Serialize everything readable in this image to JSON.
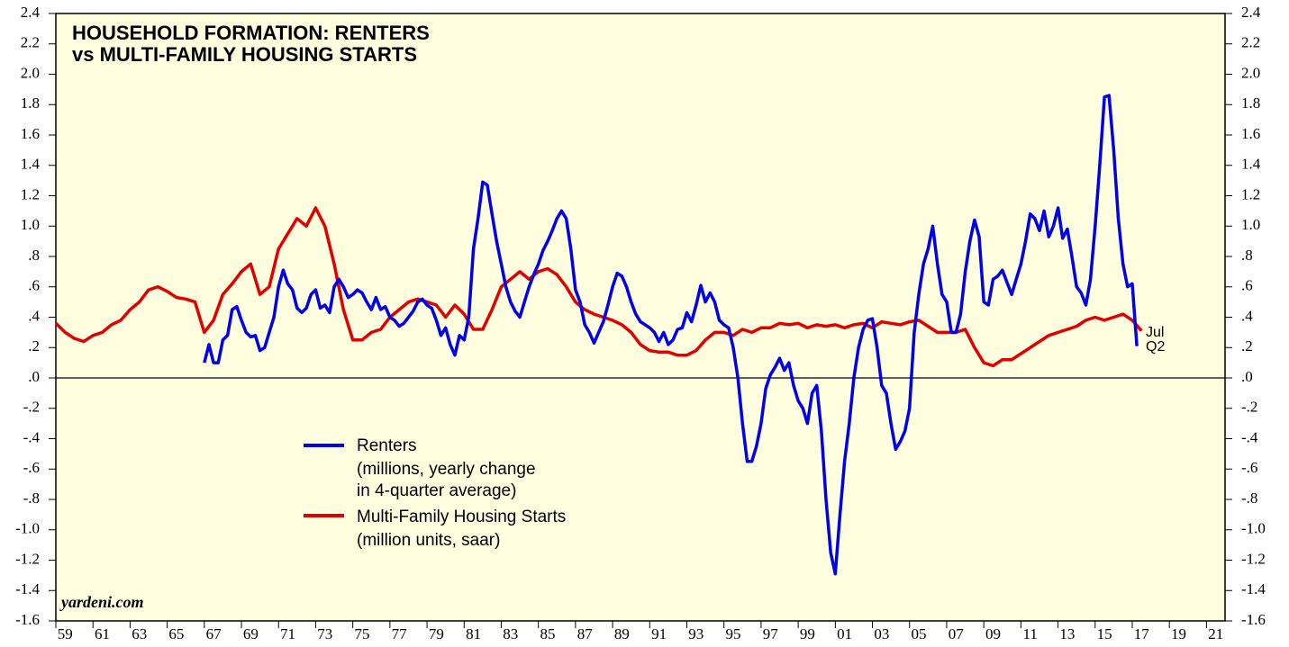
{
  "chart_data": {
    "type": "line",
    "title_lines": [
      "HOUSEHOLD FORMATION: RENTERS",
      "vs MULTI-FAMILY HOUSING STARTS"
    ],
    "source": "yardeni.com",
    "legend_notes": [
      [
        "(millions, yearly change",
        "in 4-quarter average)"
      ],
      [
        "(million units, saar)"
      ]
    ],
    "annotations": [
      {
        "text": "Jul",
        "color": "#e00000"
      },
      {
        "text": "Q2",
        "color": "#0000ee"
      }
    ],
    "xlim": [
      1959,
      2022
    ],
    "xticks": [
      {
        "value": 1959,
        "label": "59"
      },
      {
        "value": 1961,
        "label": "61"
      },
      {
        "value": 1963,
        "label": "63"
      },
      {
        "value": 1965,
        "label": "65"
      },
      {
        "value": 1967,
        "label": "67"
      },
      {
        "value": 1969,
        "label": "69"
      },
      {
        "value": 1971,
        "label": "71"
      },
      {
        "value": 1973,
        "label": "73"
      },
      {
        "value": 1975,
        "label": "75"
      },
      {
        "value": 1977,
        "label": "77"
      },
      {
        "value": 1979,
        "label": "79"
      },
      {
        "value": 1981,
        "label": "81"
      },
      {
        "value": 1983,
        "label": "83"
      },
      {
        "value": 1985,
        "label": "85"
      },
      {
        "value": 1987,
        "label": "87"
      },
      {
        "value": 1989,
        "label": "89"
      },
      {
        "value": 1991,
        "label": "91"
      },
      {
        "value": 1993,
        "label": "93"
      },
      {
        "value": 1995,
        "label": "95"
      },
      {
        "value": 1997,
        "label": "97"
      },
      {
        "value": 1999,
        "label": "99"
      },
      {
        "value": 2001,
        "label": "01"
      },
      {
        "value": 2003,
        "label": "03"
      },
      {
        "value": 2005,
        "label": "05"
      },
      {
        "value": 2007,
        "label": "07"
      },
      {
        "value": 2009,
        "label": "09"
      },
      {
        "value": 2011,
        "label": "11"
      },
      {
        "value": 2013,
        "label": "13"
      },
      {
        "value": 2015,
        "label": "15"
      },
      {
        "value": 2017,
        "label": "17"
      },
      {
        "value": 2019,
        "label": "19"
      },
      {
        "value": 2021,
        "label": "21"
      }
    ],
    "ylim": [
      -1.6,
      2.4
    ],
    "yticks": [
      2.4,
      2.2,
      {
        "value": 2,
        "label": "2.0"
      },
      1.8,
      1.6,
      1.4,
      1.2,
      {
        "value": 1,
        "label": "1.0"
      },
      {
        "value": 0.8,
        "label": ".8"
      },
      {
        "value": 0.6,
        "label": ".6"
      },
      {
        "value": 0.4,
        "label": ".4"
      },
      {
        "value": 0.2,
        "label": ".2"
      },
      {
        "value": 0,
        "label": ".0"
      },
      {
        "value": -0.2,
        "label": "-.2"
      },
      {
        "value": -0.4,
        "label": "-.4"
      },
      {
        "value": -0.6,
        "label": "-.6"
      },
      {
        "value": -0.8,
        "label": "-.8"
      },
      {
        "value": -1,
        "label": "-1.0"
      },
      -1.2,
      -1.4,
      -1.6
    ],
    "series": [
      {
        "name": "Renters",
        "color": "#0000ee",
        "x": [
          1967,
          1967.25,
          1967.5,
          1967.75,
          1968,
          1968.25,
          1968.5,
          1968.75,
          1969,
          1969.25,
          1969.5,
          1969.75,
          1970,
          1970.25,
          1970.5,
          1970.75,
          1971,
          1971.25,
          1971.5,
          1971.75,
          1972,
          1972.25,
          1972.5,
          1972.75,
          1973,
          1973.25,
          1973.5,
          1973.75,
          1974,
          1974.25,
          1974.5,
          1974.75,
          1975,
          1975.25,
          1975.5,
          1975.75,
          1976,
          1976.25,
          1976.5,
          1976.75,
          1977,
          1977.25,
          1977.5,
          1977.75,
          1978,
          1978.25,
          1978.5,
          1978.75,
          1979,
          1979.25,
          1979.5,
          1979.75,
          1980,
          1980.25,
          1980.5,
          1980.75,
          1981,
          1981.25,
          1981.5,
          1981.75,
          1982,
          1982.25,
          1982.5,
          1982.75,
          1983,
          1983.25,
          1983.5,
          1983.75,
          1984,
          1984.25,
          1984.5,
          1984.75,
          1985,
          1985.25,
          1985.5,
          1985.75,
          1986,
          1986.25,
          1986.5,
          1986.75,
          1987,
          1987.25,
          1987.5,
          1987.75,
          1988,
          1988.25,
          1988.5,
          1988.75,
          1989,
          1989.25,
          1989.5,
          1989.75,
          1990,
          1990.25,
          1990.5,
          1990.75,
          1991,
          1991.25,
          1991.5,
          1991.75,
          1992,
          1992.25,
          1992.5,
          1992.75,
          1993,
          1993.25,
          1993.5,
          1993.75,
          1994,
          1994.25,
          1994.5,
          1994.75,
          1995,
          1995.25,
          1995.5,
          1995.75,
          1996,
          1996.25,
          1996.5,
          1996.75,
          1997,
          1997.25,
          1997.5,
          1997.75,
          1998,
          1998.25,
          1998.5,
          1998.75,
          1999,
          1999.25,
          1999.5,
          1999.75,
          2000,
          2000.25,
          2000.5,
          2000.75,
          2001,
          2001.25,
          2001.5,
          2001.75,
          2002,
          2002.25,
          2002.5,
          2002.75,
          2003,
          2003.25,
          2003.5,
          2003.75,
          2004,
          2004.25,
          2004.5,
          2004.75,
          2005,
          2005.25,
          2005.5,
          2005.75,
          2006,
          2006.25,
          2006.5,
          2006.75,
          2007,
          2007.25,
          2007.5,
          2007.75,
          2008,
          2008.25,
          2008.5,
          2008.75,
          2009,
          2009.25,
          2009.5,
          2009.75,
          2010,
          2010.25,
          2010.5,
          2010.75,
          2011,
          2011.25,
          2011.5,
          2011.75,
          2012,
          2012.25,
          2012.5,
          2012.75,
          2013,
          2013.25,
          2013.5,
          2013.75,
          2014,
          2014.25,
          2014.5,
          2014.75,
          2015,
          2015.25,
          2015.5,
          2015.75,
          2016,
          2016.25,
          2016.5,
          2016.75,
          2017,
          2017.25
        ],
        "values": [
          0.1,
          0.22,
          0.1,
          0.1,
          0.25,
          0.28,
          0.45,
          0.47,
          0.38,
          0.3,
          0.27,
          0.28,
          0.18,
          0.2,
          0.3,
          0.4,
          0.6,
          0.71,
          0.62,
          0.58,
          0.46,
          0.43,
          0.46,
          0.55,
          0.58,
          0.46,
          0.48,
          0.43,
          0.6,
          0.65,
          0.6,
          0.53,
          0.55,
          0.58,
          0.56,
          0.5,
          0.45,
          0.53,
          0.45,
          0.47,
          0.4,
          0.38,
          0.34,
          0.36,
          0.4,
          0.44,
          0.5,
          0.52,
          0.48,
          0.46,
          0.38,
          0.28,
          0.33,
          0.22,
          0.15,
          0.28,
          0.25,
          0.4,
          0.85,
          1.05,
          1.29,
          1.27,
          1.08,
          0.9,
          0.75,
          0.6,
          0.5,
          0.44,
          0.4,
          0.5,
          0.6,
          0.68,
          0.75,
          0.84,
          0.9,
          0.97,
          1.05,
          1.1,
          1.05,
          0.85,
          0.58,
          0.5,
          0.35,
          0.3,
          0.23,
          0.3,
          0.37,
          0.48,
          0.6,
          0.69,
          0.67,
          0.6,
          0.5,
          0.42,
          0.37,
          0.35,
          0.33,
          0.3,
          0.24,
          0.3,
          0.22,
          0.25,
          0.32,
          0.33,
          0.43,
          0.37,
          0.48,
          0.61,
          0.5,
          0.56,
          0.5,
          0.38,
          0.35,
          0.33,
          0.2,
          0,
          -0.3,
          -0.55,
          -0.55,
          -0.45,
          -0.3,
          -0.07,
          0.02,
          0.07,
          0.13,
          0.05,
          0.1,
          -0.05,
          -0.15,
          -0.2,
          -0.3,
          -0.1,
          -0.05,
          -0.35,
          -0.8,
          -1.15,
          -1.29,
          -0.9,
          -0.55,
          -0.3,
          0,
          0.2,
          0.32,
          0.38,
          0.39,
          0.2,
          -0.05,
          -0.1,
          -0.3,
          -0.47,
          -0.42,
          -0.35,
          -0.2,
          0.3,
          0.55,
          0.75,
          0.85,
          1,
          0.75,
          0.55,
          0.5,
          0.3,
          0.3,
          0.42,
          0.7,
          0.9,
          1.04,
          0.93,
          0.5,
          0.48,
          0.65,
          0.67,
          0.71,
          0.63,
          0.55,
          0.65,
          0.75,
          0.9,
          1.08,
          1.05,
          0.97,
          1.1,
          0.93,
          1,
          1.12,
          0.92,
          0.98,
          0.8,
          0.6,
          0.56,
          0.48,
          0.65,
          1,
          1.4,
          1.85,
          1.86,
          1.5,
          1.05,
          0.75,
          0.6,
          0.62,
          0.21
        ]
      },
      {
        "name": "Multi-Family Housing Starts",
        "color": "#e00000",
        "x": [
          1959,
          1959.5,
          1960,
          1960.5,
          1961,
          1961.5,
          1962,
          1962.5,
          1963,
          1963.5,
          1964,
          1964.5,
          1965,
          1965.5,
          1966,
          1966.5,
          1967,
          1967.5,
          1968,
          1968.5,
          1969,
          1969.5,
          1970,
          1970.5,
          1971,
          1971.5,
          1972,
          1972.5,
          1973,
          1973.5,
          1974,
          1974.5,
          1975,
          1975.5,
          1976,
          1976.5,
          1977,
          1977.5,
          1978,
          1978.5,
          1979,
          1979.5,
          1980,
          1980.5,
          1981,
          1981.5,
          1982,
          1982.5,
          1983,
          1983.5,
          1984,
          1984.5,
          1985,
          1985.5,
          1986,
          1986.5,
          1987,
          1987.5,
          1988,
          1988.5,
          1989,
          1989.5,
          1990,
          1990.5,
          1991,
          1991.5,
          1992,
          1992.5,
          1993,
          1993.5,
          1994,
          1994.5,
          1995,
          1995.5,
          1996,
          1996.5,
          1997,
          1997.5,
          1998,
          1998.5,
          1999,
          1999.5,
          2000,
          2000.5,
          2001,
          2001.5,
          2002,
          2002.5,
          2003,
          2003.5,
          2004,
          2004.5,
          2005,
          2005.5,
          2006,
          2006.5,
          2007,
          2007.5,
          2008,
          2008.5,
          2009,
          2009.5,
          2010,
          2010.5,
          2011,
          2011.5,
          2012,
          2012.5,
          2013,
          2013.5,
          2014,
          2014.5,
          2015,
          2015.5,
          2016,
          2016.5,
          2017,
          2017.5
        ],
        "values": [
          0.36,
          0.3,
          0.26,
          0.24,
          0.28,
          0.3,
          0.35,
          0.38,
          0.45,
          0.5,
          0.58,
          0.6,
          0.57,
          0.53,
          0.52,
          0.5,
          0.3,
          0.38,
          0.55,
          0.62,
          0.7,
          0.75,
          0.55,
          0.6,
          0.85,
          0.95,
          1.05,
          1,
          1.12,
          1,
          0.75,
          0.45,
          0.25,
          0.25,
          0.3,
          0.32,
          0.4,
          0.45,
          0.5,
          0.52,
          0.5,
          0.48,
          0.4,
          0.48,
          0.42,
          0.32,
          0.32,
          0.45,
          0.6,
          0.65,
          0.7,
          0.65,
          0.7,
          0.72,
          0.68,
          0.6,
          0.5,
          0.45,
          0.42,
          0.4,
          0.38,
          0.35,
          0.3,
          0.22,
          0.18,
          0.17,
          0.17,
          0.15,
          0.15,
          0.18,
          0.25,
          0.3,
          0.3,
          0.28,
          0.32,
          0.3,
          0.33,
          0.33,
          0.36,
          0.35,
          0.36,
          0.33,
          0.35,
          0.34,
          0.35,
          0.33,
          0.35,
          0.36,
          0.33,
          0.37,
          0.36,
          0.35,
          0.37,
          0.38,
          0.34,
          0.3,
          0.3,
          0.3,
          0.32,
          0.2,
          0.1,
          0.08,
          0.12,
          0.12,
          0.16,
          0.2,
          0.24,
          0.28,
          0.3,
          0.32,
          0.34,
          0.38,
          0.4,
          0.38,
          0.4,
          0.42,
          0.38,
          0.31
        ]
      }
    ]
  }
}
